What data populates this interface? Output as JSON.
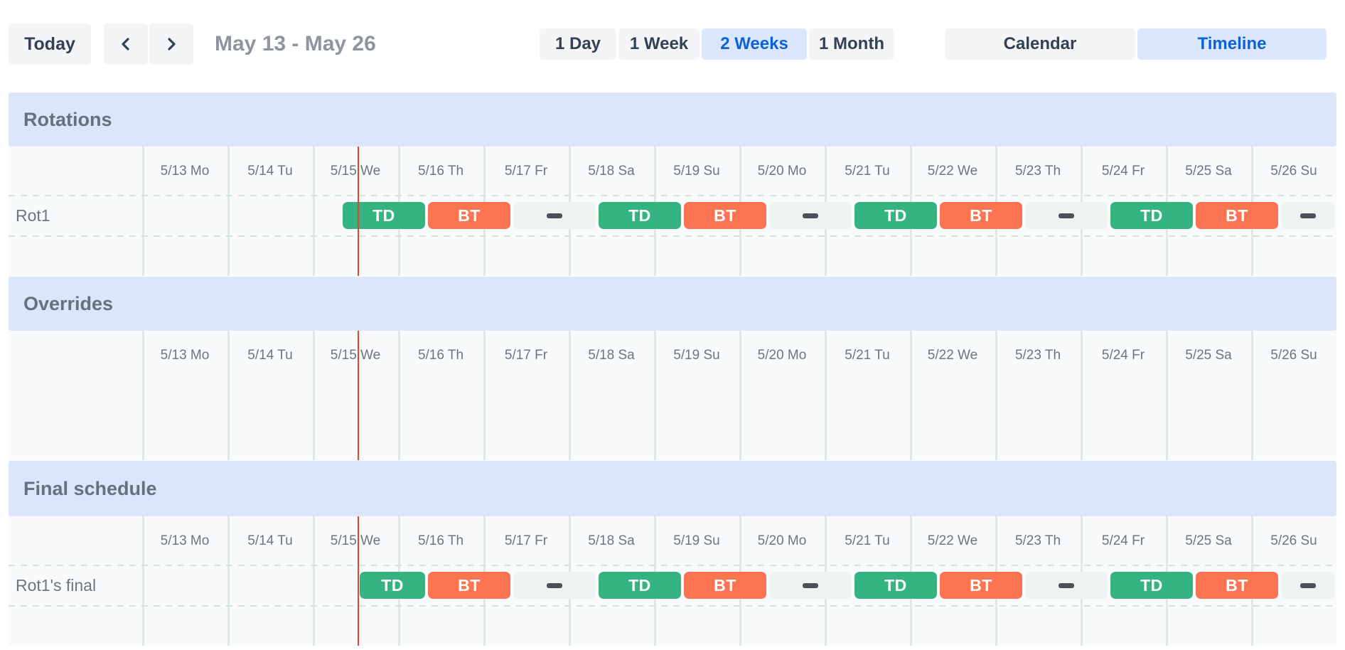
{
  "toolbar": {
    "today_label": "Today",
    "prev_icon": "chevron-left",
    "next_icon": "chevron-right",
    "title": "May 13 - May 26",
    "view_options": [
      {
        "label": "1 Day",
        "selected": false
      },
      {
        "label": "1 Week",
        "selected": false
      },
      {
        "label": "2 Weeks",
        "selected": true
      },
      {
        "label": "1 Month",
        "selected": false
      }
    ],
    "mode_options": [
      {
        "label": "Calendar",
        "selected": false
      },
      {
        "label": "Timeline",
        "selected": true
      }
    ]
  },
  "colors": {
    "accent_blue": "#0e62d9",
    "accent_blue_bg": "#dbe7fc",
    "btn_bg": "#f4f5f6",
    "btn_text": "#334056",
    "title_text": "#8e959f",
    "band_bg": "#dbe6fa",
    "band_text": "#667080",
    "grid_bg": "#f8fafb",
    "grid_line": "#e0e9e7",
    "dash_line": "#d5e3df",
    "muted_text": "#6c7580",
    "green": "#35b381",
    "orange": "#fc7452",
    "gap_bg": "#edf3f0",
    "gap_dash": "#4a5158",
    "now_line": "#e1432f"
  },
  "timeline": {
    "days": [
      "5/13 Mo",
      "5/14 Tu",
      "5/15 We",
      "5/16 Th",
      "5/17 Fr",
      "5/18 Sa",
      "5/19 Su",
      "5/20 Mo",
      "5/21 Tu",
      "5/22 We",
      "5/23 Th",
      "5/24 Fr",
      "5/25 Sa",
      "5/26 Su"
    ],
    "now_line_day": 2.535,
    "sections": [
      {
        "title": "Rotations",
        "rows": [
          {
            "label": "Rot1",
            "blocks": [
              {
                "type": "TD",
                "label": "TD",
                "start": 2.333,
                "end": 3.333
              },
              {
                "type": "BT",
                "label": "BT",
                "start": 3.333,
                "end": 4.333
              },
              {
                "type": "gap",
                "label": "",
                "start": 4.333,
                "end": 5.333
              },
              {
                "type": "TD",
                "label": "TD",
                "start": 5.333,
                "end": 6.333
              },
              {
                "type": "BT",
                "label": "BT",
                "start": 6.333,
                "end": 7.333
              },
              {
                "type": "gap",
                "label": "",
                "start": 7.333,
                "end": 8.333
              },
              {
                "type": "TD",
                "label": "TD",
                "start": 8.333,
                "end": 9.333
              },
              {
                "type": "BT",
                "label": "BT",
                "start": 9.333,
                "end": 10.333
              },
              {
                "type": "gap",
                "label": "",
                "start": 10.333,
                "end": 11.333
              },
              {
                "type": "TD",
                "label": "TD",
                "start": 11.333,
                "end": 12.333
              },
              {
                "type": "BT",
                "label": "BT",
                "start": 12.333,
                "end": 13.333
              },
              {
                "type": "gap",
                "label": "",
                "start": 13.333,
                "end": 14.0
              }
            ]
          }
        ]
      },
      {
        "title": "Overrides",
        "rows": []
      },
      {
        "title": "Final schedule",
        "rows": [
          {
            "label": "Rot1's final",
            "blocks": [
              {
                "type": "TD",
                "label": "TD",
                "start": 2.535,
                "end": 3.333
              },
              {
                "type": "BT",
                "label": "BT",
                "start": 3.333,
                "end": 4.333
              },
              {
                "type": "gap",
                "label": "",
                "start": 4.333,
                "end": 5.333
              },
              {
                "type": "TD",
                "label": "TD",
                "start": 5.333,
                "end": 6.333
              },
              {
                "type": "BT",
                "label": "BT",
                "start": 6.333,
                "end": 7.333
              },
              {
                "type": "gap",
                "label": "",
                "start": 7.333,
                "end": 8.333
              },
              {
                "type": "TD",
                "label": "TD",
                "start": 8.333,
                "end": 9.333
              },
              {
                "type": "BT",
                "label": "BT",
                "start": 9.333,
                "end": 10.333
              },
              {
                "type": "gap",
                "label": "",
                "start": 10.333,
                "end": 11.333
              },
              {
                "type": "TD",
                "label": "TD",
                "start": 11.333,
                "end": 12.333
              },
              {
                "type": "BT",
                "label": "BT",
                "start": 12.333,
                "end": 13.333
              },
              {
                "type": "gap",
                "label": "",
                "start": 13.333,
                "end": 14.0
              }
            ]
          }
        ]
      }
    ]
  }
}
